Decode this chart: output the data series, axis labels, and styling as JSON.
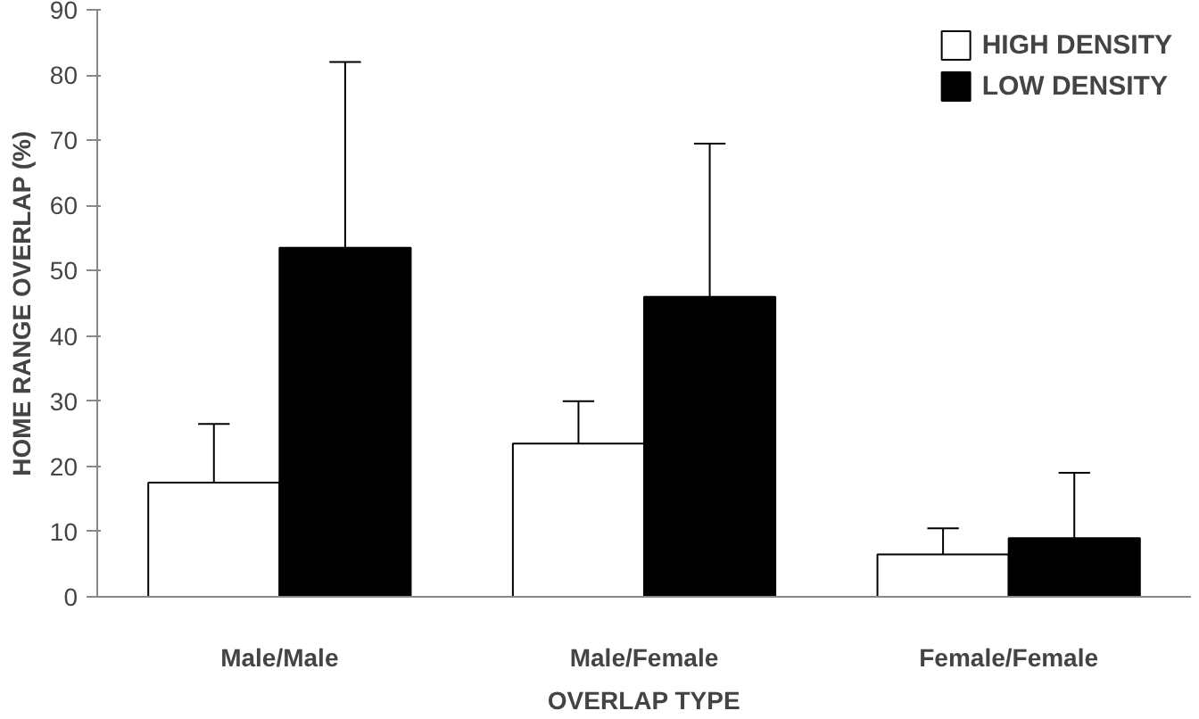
{
  "chart_data": {
    "type": "bar",
    "xlabel": "OVERLAP TYPE",
    "ylabel": "HOME RANGE OVERLAP (%)",
    "categories": [
      "Male/Male",
      "Male/Female",
      "Female/Female"
    ],
    "series": [
      {
        "name": "HIGH DENSITY",
        "color": "#ffffff",
        "values": [
          17.5,
          23.5,
          6.5
        ],
        "errors": [
          [
            17.5,
            26.5
          ],
          [
            23.5,
            30
          ],
          [
            6.5,
            10.5
          ]
        ]
      },
      {
        "name": "LOW DENSITY",
        "color": "#000000",
        "values": [
          53.5,
          46,
          9
        ],
        "errors": [
          [
            53.5,
            82
          ],
          [
            46,
            69.5
          ],
          [
            9,
            19
          ]
        ]
      }
    ],
    "ylim": [
      0,
      90
    ],
    "yticks": [
      0,
      10,
      20,
      30,
      40,
      50,
      60,
      70,
      80,
      90
    ],
    "grid": false,
    "legend": "top right"
  }
}
